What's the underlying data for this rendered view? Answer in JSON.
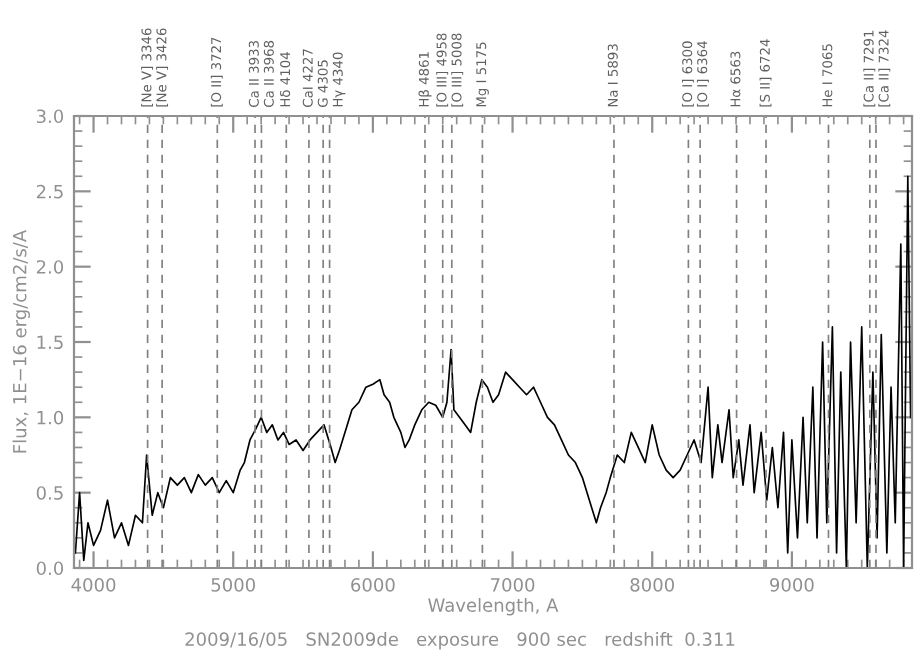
{
  "chart_data": {
    "type": "line",
    "xlabel": "Wavelength, A",
    "ylabel": "Flux, 1E−16 erg/cm2/s/A",
    "annotations": [
      "2009/16/05   SN2009de   exposure   900 sec   redshift  0.311"
    ],
    "x": [
      3870,
      3900,
      3930,
      3960,
      4000,
      4050,
      4100,
      4150,
      4200,
      4250,
      4300,
      4350,
      4380,
      4420,
      4460,
      4500,
      4550,
      4600,
      4650,
      4700,
      4750,
      4800,
      4850,
      4900,
      4950,
      5000,
      5050,
      5080,
      5120,
      5160,
      5200,
      5240,
      5280,
      5320,
      5360,
      5400,
      5450,
      5500,
      5550,
      5600,
      5650,
      5700,
      5730,
      5760,
      5800,
      5850,
      5900,
      5950,
      6000,
      6050,
      6080,
      6120,
      6150,
      6200,
      6230,
      6260,
      6300,
      6350,
      6400,
      6450,
      6500,
      6530,
      6560,
      6580,
      6620,
      6660,
      6700,
      6740,
      6780,
      6820,
      6860,
      6900,
      6950,
      7000,
      7050,
      7100,
      7150,
      7200,
      7250,
      7300,
      7350,
      7400,
      7450,
      7500,
      7550,
      7600,
      7630,
      7670,
      7700,
      7750,
      7800,
      7850,
      7900,
      7950,
      8000,
      8050,
      8100,
      8150,
      8200,
      8250,
      8300,
      8350,
      8400,
      8430,
      8470,
      8500,
      8550,
      8580,
      8620,
      8650,
      8700,
      8730,
      8780,
      8820,
      8860,
      8900,
      8940,
      8970,
      9000,
      9040,
      9080,
      9110,
      9150,
      9180,
      9220,
      9250,
      9290,
      9320,
      9350,
      9390,
      9420,
      9460,
      9500,
      9540,
      9580,
      9610,
      9640,
      9680,
      9710,
      9740,
      9780,
      9800,
      9830,
      9850
    ],
    "series": [
      {
        "color": "#000000",
        "values": [
          0.1,
          0.5,
          0.05,
          0.3,
          0.15,
          0.25,
          0.45,
          0.2,
          0.3,
          0.15,
          0.35,
          0.3,
          0.75,
          0.35,
          0.5,
          0.4,
          0.6,
          0.55,
          0.6,
          0.5,
          0.62,
          0.55,
          0.6,
          0.5,
          0.58,
          0.5,
          0.65,
          0.7,
          0.85,
          0.92,
          1.0,
          0.9,
          0.95,
          0.85,
          0.9,
          0.82,
          0.85,
          0.78,
          0.85,
          0.9,
          0.95,
          0.8,
          0.7,
          0.78,
          0.9,
          1.05,
          1.1,
          1.2,
          1.22,
          1.25,
          1.15,
          1.1,
          1.0,
          0.9,
          0.8,
          0.85,
          0.95,
          1.05,
          1.1,
          1.08,
          1.0,
          1.1,
          1.45,
          1.05,
          1.0,
          0.95,
          0.9,
          1.1,
          1.25,
          1.2,
          1.1,
          1.15,
          1.3,
          1.25,
          1.2,
          1.15,
          1.2,
          1.1,
          1.0,
          0.95,
          0.85,
          0.75,
          0.7,
          0.6,
          0.45,
          0.3,
          0.4,
          0.5,
          0.6,
          0.75,
          0.7,
          0.9,
          0.8,
          0.7,
          0.95,
          0.75,
          0.65,
          0.6,
          0.65,
          0.75,
          0.85,
          0.7,
          1.2,
          0.6,
          0.95,
          0.7,
          1.05,
          0.6,
          0.85,
          0.55,
          0.95,
          0.5,
          0.9,
          0.45,
          0.8,
          0.4,
          0.9,
          0.1,
          0.85,
          0.2,
          1.0,
          0.3,
          1.2,
          0.2,
          1.5,
          0.3,
          1.6,
          0.1,
          1.3,
          0.0,
          1.5,
          0.3,
          1.6,
          0.0,
          1.3,
          0.2,
          1.55,
          0.1,
          1.2,
          0.3,
          2.15,
          0.0,
          2.6,
          1.0
        ]
      }
    ],
    "xlim": [
      3860,
      9860
    ],
    "xticks": [
      4000,
      5000,
      6000,
      7000,
      8000,
      9000
    ],
    "ylim": [
      0,
      3.0
    ],
    "yticks": [
      {
        "value": 0,
        "label": "0.0"
      },
      {
        "value": 0.5,
        "label": "0.5"
      },
      {
        "value": 1,
        "label": "1.0"
      },
      {
        "value": 1.5,
        "label": "1.5"
      },
      {
        "value": 2,
        "label": "2.0"
      },
      {
        "value": 2.5,
        "label": "2.5"
      },
      {
        "value": 3,
        "label": "3.0"
      }
    ],
    "grid": false,
    "legend": false,
    "marker": "none",
    "line_style": "solid",
    "ref_lines": [
      {
        "axis": "x",
        "value": 4387,
        "label": "[Ne V] 3346",
        "color": "#808080",
        "line_style": "dashed"
      },
      {
        "axis": "x",
        "value": 4491,
        "label": "[Ne V] 3426",
        "color": "#808080",
        "line_style": "dashed"
      },
      {
        "axis": "x",
        "value": 4886,
        "label": "[O II] 3727",
        "color": "#808080",
        "line_style": "dashed"
      },
      {
        "axis": "x",
        "value": 5156,
        "label": "Ca II 3933",
        "color": "#808080",
        "line_style": "dashed"
      },
      {
        "axis": "x",
        "value": 5202,
        "label": "Ca II 3968",
        "color": "#808080",
        "line_style": "dashed"
      },
      {
        "axis": "x",
        "value": 5380,
        "label": "Hδ 4104",
        "color": "#808080",
        "line_style": "dashed"
      },
      {
        "axis": "x",
        "value": 5542,
        "label": "CaI 4227",
        "color": "#808080",
        "line_style": "dashed"
      },
      {
        "axis": "x",
        "value": 5644,
        "label": "G 4305",
        "color": "#808080",
        "line_style": "dashed"
      },
      {
        "axis": "x",
        "value": 5690,
        "label": "Hγ 4340",
        "color": "#808080",
        "line_style": "dashed"
      },
      {
        "axis": "x",
        "value": 6373,
        "label": "Hβ 4861",
        "color": "#808080",
        "line_style": "dashed"
      },
      {
        "axis": "x",
        "value": 6500,
        "label": "[O III] 4958",
        "color": "#808080",
        "line_style": "dashed"
      },
      {
        "axis": "x",
        "value": 6565,
        "label": "[O III] 5008",
        "color": "#808080",
        "line_style": "dashed"
      },
      {
        "axis": "x",
        "value": 6784,
        "label": "Mg I 5175",
        "color": "#808080",
        "line_style": "dashed"
      },
      {
        "axis": "x",
        "value": 7726,
        "label": "Na I 5893",
        "color": "#808080",
        "line_style": "dashed"
      },
      {
        "axis": "x",
        "value": 8259,
        "label": "[O I] 6300",
        "color": "#808080",
        "line_style": "dashed"
      },
      {
        "axis": "x",
        "value": 8343,
        "label": "[O I] 6364",
        "color": "#808080",
        "line_style": "dashed"
      },
      {
        "axis": "x",
        "value": 8604,
        "label": "Hα 6563",
        "color": "#808080",
        "line_style": "dashed"
      },
      {
        "axis": "x",
        "value": 8815,
        "label": "[S II] 6724",
        "color": "#808080",
        "line_style": "dashed"
      },
      {
        "axis": "x",
        "value": 9262,
        "label": "He I 7065",
        "color": "#808080",
        "line_style": "dashed"
      },
      {
        "axis": "x",
        "value": 9558,
        "label": "[Ca II] 7291",
        "color": "#808080",
        "line_style": "dashed"
      },
      {
        "axis": "x",
        "value": 9602,
        "label": "[Ca II] 7324",
        "color": "#808080",
        "line_style": "dashed"
      }
    ]
  }
}
